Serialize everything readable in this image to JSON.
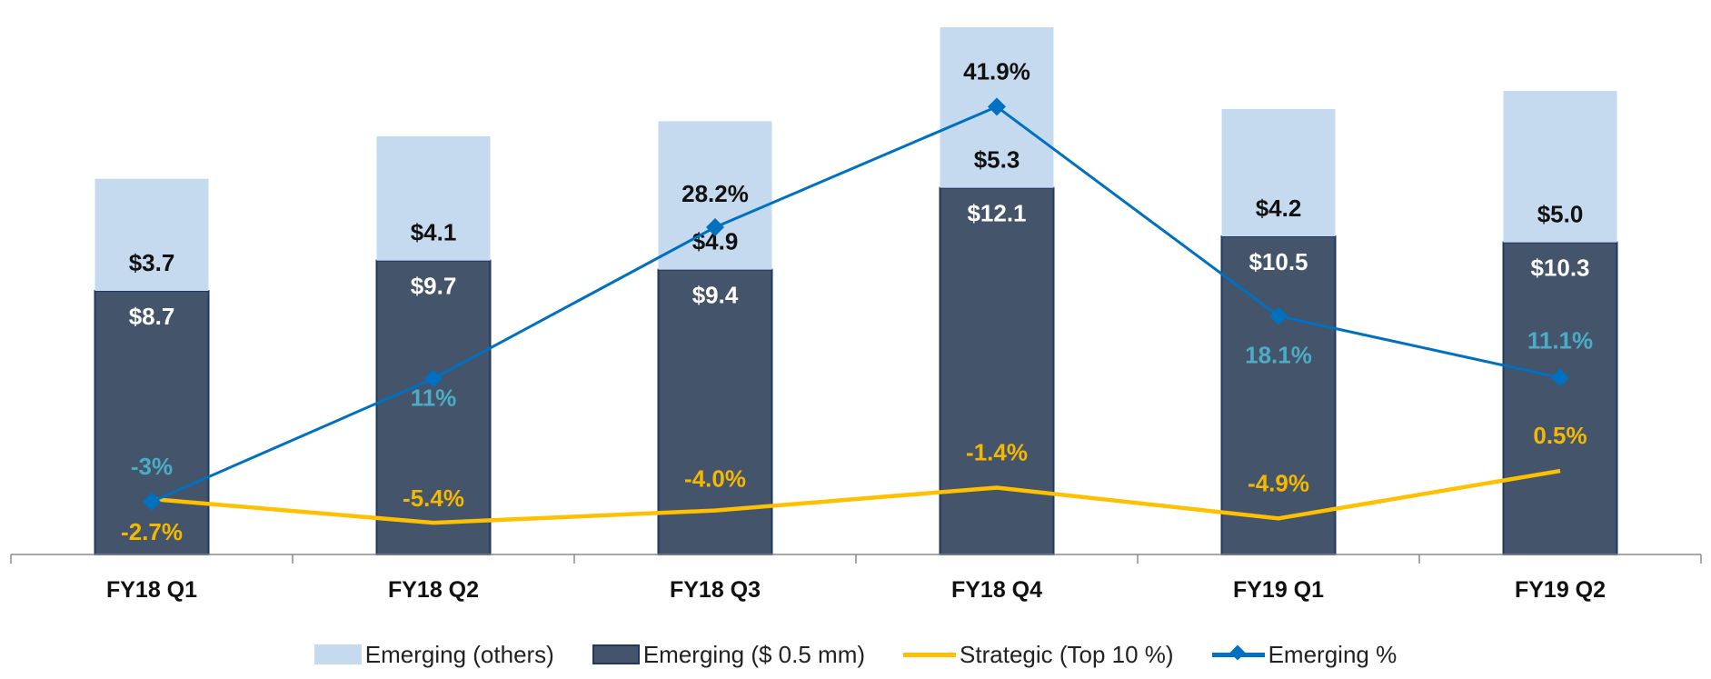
{
  "chart_data": {
    "type": "bar",
    "stacked": true,
    "title": "",
    "xlabel": "",
    "ylabel": "",
    "categories": [
      "FY18 Q1",
      "FY18 Q2",
      "FY18 Q3",
      "FY18 Q4",
      "FY19 Q1",
      "FY19 Q2"
    ],
    "series": [
      {
        "name": "Emerging ($ 0.5 mm)",
        "kind": "bar",
        "color": "#44546A",
        "values": [
          8.7,
          9.7,
          9.4,
          12.1,
          10.5,
          10.3
        ],
        "labels": [
          "$8.7",
          "$9.7",
          "$9.4",
          "$12.1",
          "$10.5",
          "$10.3"
        ]
      },
      {
        "name": "Emerging (others)",
        "kind": "bar",
        "color": "#C5DAEE",
        "values": [
          3.7,
          4.1,
          4.9,
          5.3,
          4.2,
          5.0
        ],
        "labels": [
          "$3.7",
          "$4.1",
          "$4.9",
          "$5.3",
          "$4.2",
          "$5.0"
        ]
      },
      {
        "name": "Strategic (Top 10 %)",
        "kind": "line",
        "color": "#FFC000",
        "label_color": "#F5B800",
        "values": [
          -2.7,
          -5.4,
          -4.0,
          -1.4,
          -4.9,
          0.5
        ],
        "labels": [
          "-2.7%",
          "-5.4%",
          "-4.0%",
          "-1.4%",
          "-4.9%",
          "0.5%"
        ]
      },
      {
        "name": "Emerging %",
        "kind": "line",
        "marker": "diamond",
        "color": "#0070C0",
        "label_color": "#4BACC6",
        "values": [
          -3,
          11,
          28.2,
          41.9,
          18.1,
          11.1
        ],
        "labels": [
          "-3%",
          "11%",
          "28.2%",
          "41.9%",
          "18.1%",
          "11.1%"
        ]
      }
    ],
    "bar_axis_range": [
      0,
      18
    ],
    "line_axis_range": [
      -9,
      53
    ],
    "grid": false,
    "legend_position": "bottom"
  },
  "legend": {
    "items": [
      {
        "label": "Emerging (others)",
        "kind": "box",
        "color": "#C5DAEE"
      },
      {
        "label": "Emerging ($ 0.5 mm)",
        "kind": "box",
        "color": "#44546A"
      },
      {
        "label": "Strategic (Top 10 %)",
        "kind": "line",
        "color": "#FFC000"
      },
      {
        "label": "Emerging %",
        "kind": "line-diamond",
        "color": "#0070C0"
      }
    ]
  }
}
